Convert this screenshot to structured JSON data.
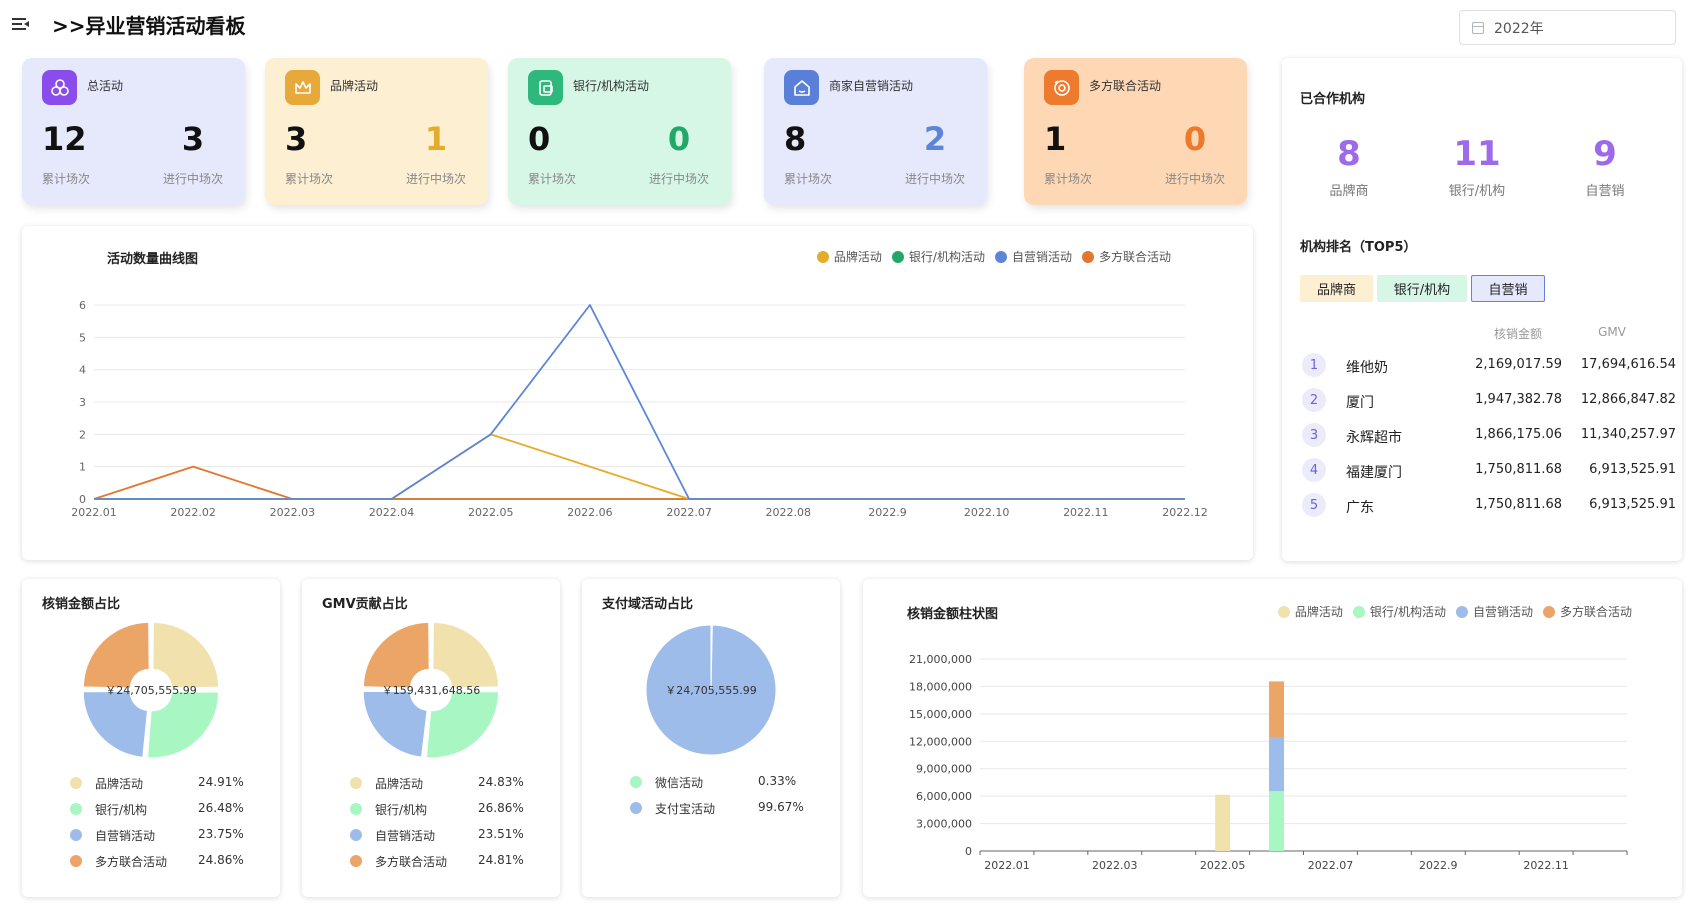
{
  "header": {
    "title": ">>异业营销活动看板",
    "menu_icon": "menu-fold-icon",
    "year_value": "2022年",
    "calendar_icon": "calendar-icon"
  },
  "stat_cards": [
    {
      "name": "总活动",
      "total": "12",
      "ongoing": "3",
      "total_label": "累计场次",
      "ongoing_label": "进行中场次",
      "icon": "activities-icon",
      "bg": "#e6e8fc",
      "icon_bg": "#8a4dec",
      "ongoing_color": "#111111"
    },
    {
      "name": "品牌活动",
      "total": "3",
      "ongoing": "1",
      "total_label": "累计场次",
      "ongoing_label": "进行中场次",
      "icon": "crown-icon",
      "bg": "#fcefd2",
      "icon_bg": "#e7a93a",
      "ongoing_color": "#e3ac2c"
    },
    {
      "name": "银行/机构活动",
      "total": "0",
      "ongoing": "0",
      "total_label": "累计场次",
      "ongoing_label": "进行中场次",
      "icon": "bank-card-icon",
      "bg": "#d6f6e6",
      "icon_bg": "#2fb87b",
      "ongoing_color": "#1fa866"
    },
    {
      "name": "商家自营销活动",
      "total": "8",
      "ongoing": "2",
      "total_label": "累计场次",
      "ongoing_label": "进行中场次",
      "icon": "store-icon",
      "bg": "#e6e8fc",
      "icon_bg": "#5a7fd8",
      "ongoing_color": "#5b86d8"
    },
    {
      "name": "多方联合活动",
      "total": "1",
      "ongoing": "0",
      "total_label": "累计场次",
      "ongoing_label": "进行中场次",
      "icon": "handshake-icon",
      "bg": "#fed8b5",
      "icon_bg": "#ee7a2e",
      "ongoing_color": "#ec7a2a"
    }
  ],
  "partners": {
    "title": "已合作机构",
    "stats": [
      {
        "value": "8",
        "label": "品牌商"
      },
      {
        "value": "11",
        "label": "银行/机构"
      },
      {
        "value": "9",
        "label": "自营销"
      }
    ],
    "ranking_title": "机构排名（TOP5）",
    "tabs": [
      {
        "label": "品牌商",
        "bg": "#fcefd2",
        "active": false
      },
      {
        "label": "银行/机构",
        "bg": "#d6f6e6",
        "active": false
      },
      {
        "label": "自营销",
        "bg": "#e6e8fc",
        "active": true
      }
    ],
    "columns": [
      "核销金额",
      "GMV"
    ],
    "rows": [
      {
        "rank": "1",
        "name": "维他奶",
        "amount": "2,169,017.59",
        "gmv": "17,694,616.54"
      },
      {
        "rank": "2",
        "name": "厦门",
        "amount": "1,947,382.78",
        "gmv": "12,866,847.82"
      },
      {
        "rank": "3",
        "name": "永辉超市",
        "amount": "1,866,175.06",
        "gmv": "11,340,257.97"
      },
      {
        "rank": "4",
        "name": "福建厦门",
        "amount": "1,750,811.68",
        "gmv": "6,913,525.91"
      },
      {
        "rank": "5",
        "name": "广东",
        "amount": "1,750,811.68",
        "gmv": "6,913,525.91"
      }
    ]
  },
  "colors": {
    "line": {
      "brand": "#e3ac2c",
      "bank": "#1fa866",
      "self": "#5b86d8",
      "joint": "#e2772f"
    },
    "pie": {
      "brand": "#f1e2ad",
      "bank": "#a8f7c2",
      "self": "#9dbcea",
      "joint": "#eba566"
    }
  },
  "chart_data": [
    {
      "id": "line",
      "type": "line",
      "title": "活动数量曲线图",
      "x": [
        "2022.01",
        "2022.02",
        "2022.03",
        "2022.04",
        "2022.05",
        "2022.06",
        "2022.07",
        "2022.08",
        "2022.9",
        "2022.10",
        "2022.11",
        "2022.12"
      ],
      "y_ticks": [
        "0",
        "1",
        "2",
        "3",
        "4",
        "5",
        "6"
      ],
      "ylim": [
        0,
        6
      ],
      "grid": true,
      "legend_position": "top-right",
      "series": [
        {
          "name": "品牌活动",
          "color": "#e3ac2c",
          "values": [
            0,
            0,
            0,
            0,
            2,
            1,
            0,
            0,
            0,
            0,
            0,
            0
          ]
        },
        {
          "name": "银行/机构活动",
          "color": "#1fa866",
          "values": [
            0,
            0,
            0,
            0,
            0,
            0,
            0,
            0,
            0,
            0,
            0,
            0
          ]
        },
        {
          "name": "自营销活动",
          "color": "#5b86d8",
          "values": [
            0,
            0,
            0,
            0,
            2,
            6,
            0,
            0,
            0,
            0,
            0,
            0
          ]
        },
        {
          "name": "多方联合活动",
          "color": "#e2772f",
          "values": [
            0,
            1,
            0,
            0,
            0,
            0,
            0,
            0,
            0,
            0,
            0,
            0
          ]
        }
      ]
    },
    {
      "id": "pie1",
      "type": "pie",
      "title": "核销金额占比",
      "center_label": "￥24,705,555.99",
      "slices": [
        {
          "name": "品牌活动",
          "percent": 24.91,
          "label": "24.91%"
        },
        {
          "name": "银行/机构",
          "percent": 26.48,
          "label": "26.48%"
        },
        {
          "name": "自营销活动",
          "percent": 23.75,
          "label": "23.75%"
        },
        {
          "name": "多方联合活动",
          "percent": 24.86,
          "label": "24.86%"
        }
      ]
    },
    {
      "id": "pie2",
      "type": "pie",
      "title": "GMV贡献占比",
      "center_label": "￥159,431,648.56",
      "slices": [
        {
          "name": "品牌活动",
          "percent": 24.83,
          "label": "24.83%"
        },
        {
          "name": "银行/机构",
          "percent": 26.86,
          "label": "26.86%"
        },
        {
          "name": "自营销活动",
          "percent": 23.51,
          "label": "23.51%"
        },
        {
          "name": "多方联合活动",
          "percent": 24.81,
          "label": "24.81%"
        }
      ]
    },
    {
      "id": "pie3",
      "type": "pie",
      "title": "支付域活动占比",
      "center_label": "￥24,705,555.99",
      "slices": [
        {
          "name": "微信活动",
          "percent": 0.33,
          "label": "0.33%"
        },
        {
          "name": "支付宝活动",
          "percent": 99.67,
          "label": "99.67%"
        }
      ]
    },
    {
      "id": "bar",
      "type": "bar",
      "title": "核销金额柱状图",
      "categories": [
        "2022.01",
        "2022.02",
        "2022.03",
        "2022.04",
        "2022.05",
        "2022.06",
        "2022.07",
        "2022.08",
        "2022.9",
        "2022.10",
        "2022.11",
        "2022.12"
      ],
      "x_tick_labels": [
        "2022.01",
        "2022.03",
        "2022.05",
        "2022.07",
        "2022.9",
        "2022.11"
      ],
      "y_ticks": [
        "0",
        "3,000,000",
        "6,000,000",
        "9,000,000",
        "12,000,000",
        "15,000,000",
        "18,000,000",
        "21,000,000"
      ],
      "ylim": [
        0,
        21000000
      ],
      "stacked": true,
      "grid": true,
      "legend_position": "top-right",
      "series": [
        {
          "name": "品牌活动",
          "color": "#f1e2ad",
          "values": [
            0,
            0,
            0,
            0,
            6150000,
            0,
            0,
            0,
            0,
            0,
            0,
            0
          ]
        },
        {
          "name": "银行/机构活动",
          "color": "#a8f7c2",
          "values": [
            0,
            0,
            0,
            0,
            0,
            6540000,
            0,
            0,
            0,
            0,
            0,
            0
          ]
        },
        {
          "name": "自营销活动",
          "color": "#9dbcea",
          "values": [
            0,
            0,
            0,
            0,
            0,
            5870000,
            0,
            0,
            0,
            0,
            0,
            0
          ]
        },
        {
          "name": "多方联合活动",
          "color": "#eba566",
          "values": [
            0,
            0,
            0,
            0,
            0,
            6140000,
            0,
            0,
            0,
            0,
            0,
            0
          ]
        }
      ]
    }
  ]
}
